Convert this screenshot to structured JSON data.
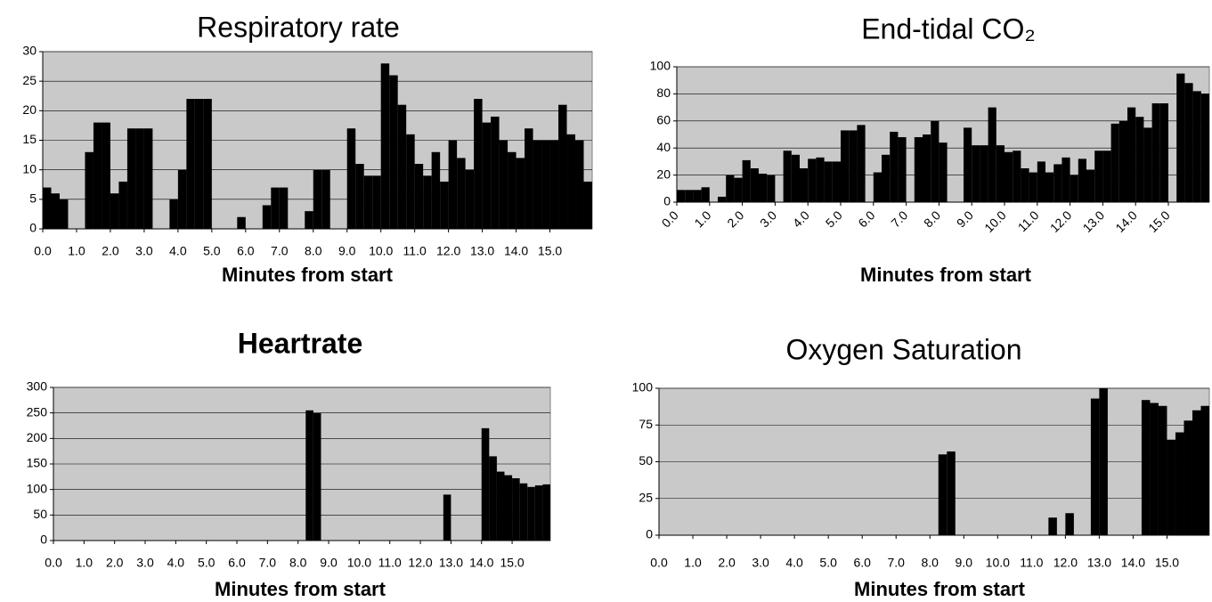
{
  "chart_data": [
    {
      "type": "bar",
      "title": "Respiratory rate",
      "x_label": "Minutes from start",
      "color": "#000000",
      "grid": true,
      "x": [
        0,
        0.25,
        0.5,
        0.75,
        1,
        1.25,
        1.5,
        1.75,
        2,
        2.25,
        2.5,
        2.75,
        3,
        3.25,
        3.5,
        3.75,
        4,
        4.25,
        4.5,
        4.75,
        5,
        5.25,
        5.5,
        5.75,
        6,
        6.25,
        6.5,
        6.75,
        7,
        7.25,
        7.5,
        7.75,
        8,
        8.25,
        8.5,
        8.75,
        9,
        9.25,
        9.5,
        9.75,
        10,
        10.25,
        10.5,
        10.75,
        11,
        11.25,
        11.5,
        11.75,
        12,
        12.25,
        12.5,
        12.75,
        13,
        13.25,
        13.5,
        13.75,
        14,
        14.25,
        14.5,
        14.75,
        15,
        15.25,
        15.5,
        15.75,
        16
      ],
      "values": [
        7,
        6,
        5,
        0,
        0,
        13,
        18,
        18,
        6,
        8,
        17,
        17,
        17,
        0,
        0,
        5,
        10,
        22,
        22,
        22,
        0,
        0,
        0,
        2,
        0,
        0,
        4,
        7,
        7,
        0,
        0,
        3,
        10,
        10,
        0,
        0,
        17,
        11,
        9,
        9,
        28,
        26,
        21,
        16,
        11,
        9,
        13,
        8,
        15,
        12,
        10,
        22,
        18,
        19,
        15,
        13,
        12,
        17,
        15,
        15,
        15,
        21,
        16,
        15,
        8
      ],
      "xlim": [
        0,
        16.25
      ],
      "xticks": [
        {
          "value": 0,
          "label": "0.0"
        },
        {
          "value": 1,
          "label": "1.0"
        },
        {
          "value": 2,
          "label": "2.0"
        },
        {
          "value": 3,
          "label": "3.0"
        },
        {
          "value": 4,
          "label": "4.0"
        },
        {
          "value": 5,
          "label": "5.0"
        },
        {
          "value": 6,
          "label": "6.0"
        },
        {
          "value": 7,
          "label": "7.0"
        },
        {
          "value": 8,
          "label": "8.0"
        },
        {
          "value": 9,
          "label": "9.0"
        },
        {
          "value": 10,
          "label": "10.0"
        },
        {
          "value": 11,
          "label": "11.0"
        },
        {
          "value": 12,
          "label": "12.0"
        },
        {
          "value": 13,
          "label": "13.0"
        },
        {
          "value": 14,
          "label": "14.0"
        },
        {
          "value": 15,
          "label": "15.0"
        }
      ],
      "ylim": [
        0,
        30
      ],
      "yticks": [
        0,
        5,
        10,
        15,
        20,
        25,
        30
      ]
    },
    {
      "type": "bar",
      "title": "End-tidal CO₂",
      "x_label": "Minutes from start",
      "color": "#000000",
      "grid": true,
      "x": [
        0,
        0.25,
        0.5,
        0.75,
        1,
        1.25,
        1.5,
        1.75,
        2,
        2.25,
        2.5,
        2.75,
        3,
        3.25,
        3.5,
        3.75,
        4,
        4.25,
        4.5,
        4.75,
        5,
        5.25,
        5.5,
        5.75,
        6,
        6.25,
        6.5,
        6.75,
        7,
        7.25,
        7.5,
        7.75,
        8,
        8.25,
        8.5,
        8.75,
        9,
        9.25,
        9.5,
        9.75,
        10,
        10.25,
        10.5,
        10.75,
        11,
        11.25,
        11.5,
        11.75,
        12,
        12.25,
        12.5,
        12.75,
        13,
        13.25,
        13.5,
        13.75,
        14,
        14.25,
        14.5,
        14.75,
        15,
        15.25,
        15.5,
        15.75,
        16
      ],
      "values": [
        9,
        9,
        9,
        11,
        0,
        4,
        20,
        18,
        31,
        25,
        21,
        20,
        0,
        38,
        35,
        25,
        32,
        33,
        30,
        30,
        53,
        53,
        57,
        0,
        22,
        35,
        52,
        48,
        0,
        48,
        50,
        60,
        44,
        0,
        0,
        55,
        42,
        42,
        70,
        42,
        37,
        38,
        25,
        22,
        30,
        22,
        28,
        33,
        20,
        32,
        24,
        38,
        38,
        58,
        60,
        70,
        63,
        55,
        73,
        73,
        0,
        95,
        88,
        82,
        80
      ],
      "xlim": [
        0,
        16.25
      ],
      "xticks": [
        {
          "value": 0,
          "label": "0.0"
        },
        {
          "value": 1,
          "label": "1.0"
        },
        {
          "value": 2,
          "label": "2.0"
        },
        {
          "value": 3,
          "label": "3.0"
        },
        {
          "value": 4,
          "label": "4.0"
        },
        {
          "value": 5,
          "label": "5.0"
        },
        {
          "value": 6,
          "label": "6.0"
        },
        {
          "value": 7,
          "label": "7.0"
        },
        {
          "value": 8,
          "label": "8.0"
        },
        {
          "value": 9,
          "label": "9.0"
        },
        {
          "value": 10,
          "label": "10.0"
        },
        {
          "value": 11,
          "label": "11.0"
        },
        {
          "value": 12,
          "label": "12.0"
        },
        {
          "value": 13,
          "label": "13.0"
        },
        {
          "value": 14,
          "label": "14.0"
        },
        {
          "value": 15,
          "label": "15.0"
        }
      ],
      "ylim": [
        0,
        100
      ],
      "yticks": [
        0,
        20,
        40,
        60,
        80,
        100
      ]
    },
    {
      "type": "bar",
      "title": "Heartrate",
      "x_label": "Minutes from start",
      "color": "#000000",
      "grid": true,
      "x": [
        0,
        0.25,
        0.5,
        0.75,
        1,
        1.25,
        1.5,
        1.75,
        2,
        2.25,
        2.5,
        2.75,
        3,
        3.25,
        3.5,
        3.75,
        4,
        4.25,
        4.5,
        4.75,
        5,
        5.25,
        5.5,
        5.75,
        6,
        6.25,
        6.5,
        6.75,
        7,
        7.25,
        7.5,
        7.75,
        8,
        8.25,
        8.5,
        8.75,
        9,
        9.25,
        9.5,
        9.75,
        10,
        10.25,
        10.5,
        10.75,
        11,
        11.25,
        11.5,
        11.75,
        12,
        12.25,
        12.5,
        12.75,
        13,
        13.25,
        13.5,
        13.75,
        14,
        14.25,
        14.5,
        14.75,
        15,
        15.25,
        15.5,
        15.75,
        16
      ],
      "values": [
        0,
        0,
        0,
        0,
        0,
        0,
        0,
        0,
        0,
        0,
        0,
        0,
        0,
        0,
        0,
        0,
        0,
        0,
        0,
        0,
        0,
        0,
        0,
        0,
        0,
        0,
        0,
        0,
        0,
        0,
        0,
        0,
        0,
        255,
        250,
        0,
        0,
        0,
        0,
        0,
        0,
        0,
        0,
        0,
        0,
        0,
        0,
        0,
        0,
        0,
        0,
        90,
        0,
        0,
        0,
        0,
        220,
        165,
        135,
        128,
        122,
        112,
        105,
        108,
        110
      ],
      "xlim": [
        0,
        16.25
      ],
      "xticks": [
        {
          "value": 0,
          "label": "0.0"
        },
        {
          "value": 1,
          "label": "1.0"
        },
        {
          "value": 2,
          "label": "2.0"
        },
        {
          "value": 3,
          "label": "3.0"
        },
        {
          "value": 4,
          "label": "4.0"
        },
        {
          "value": 5,
          "label": "5.0"
        },
        {
          "value": 6,
          "label": "6.0"
        },
        {
          "value": 7,
          "label": "7.0"
        },
        {
          "value": 8,
          "label": "8.0"
        },
        {
          "value": 9,
          "label": "9.0"
        },
        {
          "value": 10,
          "label": "10.0"
        },
        {
          "value": 11,
          "label": "11.0"
        },
        {
          "value": 12,
          "label": "12.0"
        },
        {
          "value": 13,
          "label": "13.0"
        },
        {
          "value": 14,
          "label": "14.0"
        },
        {
          "value": 15,
          "label": "15.0"
        }
      ],
      "ylim": [
        0,
        300
      ],
      "yticks": [
        0,
        50,
        100,
        150,
        200,
        250,
        300
      ]
    },
    {
      "type": "bar",
      "title": "Oxygen Saturation",
      "x_label": "Minutes from start",
      "color": "#000000",
      "grid": true,
      "x": [
        0,
        0.25,
        0.5,
        0.75,
        1,
        1.25,
        1.5,
        1.75,
        2,
        2.25,
        2.5,
        2.75,
        3,
        3.25,
        3.5,
        3.75,
        4,
        4.25,
        4.5,
        4.75,
        5,
        5.25,
        5.5,
        5.75,
        6,
        6.25,
        6.5,
        6.75,
        7,
        7.25,
        7.5,
        7.75,
        8,
        8.25,
        8.5,
        8.75,
        9,
        9.25,
        9.5,
        9.75,
        10,
        10.25,
        10.5,
        10.75,
        11,
        11.25,
        11.5,
        11.75,
        12,
        12.25,
        12.5,
        12.75,
        13,
        13.25,
        13.5,
        13.75,
        14,
        14.25,
        14.5,
        14.75,
        15,
        15.25,
        15.5,
        15.75,
        16
      ],
      "values": [
        0,
        0,
        0,
        0,
        0,
        0,
        0,
        0,
        0,
        0,
        0,
        0,
        0,
        0,
        0,
        0,
        0,
        0,
        0,
        0,
        0,
        0,
        0,
        0,
        0,
        0,
        0,
        0,
        0,
        0,
        0,
        0,
        0,
        55,
        57,
        0,
        0,
        0,
        0,
        0,
        0,
        0,
        0,
        0,
        0,
        0,
        12,
        0,
        15,
        0,
        0,
        93,
        100,
        0,
        0,
        0,
        0,
        92,
        90,
        88,
        65,
        70,
        78,
        85,
        88
      ],
      "xlim": [
        0,
        16.25
      ],
      "xticks": [
        {
          "value": 0,
          "label": "0.0"
        },
        {
          "value": 1,
          "label": "1.0"
        },
        {
          "value": 2,
          "label": "2.0"
        },
        {
          "value": 3,
          "label": "3.0"
        },
        {
          "value": 4,
          "label": "4.0"
        },
        {
          "value": 5,
          "label": "5.0"
        },
        {
          "value": 6,
          "label": "6.0"
        },
        {
          "value": 7,
          "label": "7.0"
        },
        {
          "value": 8,
          "label": "8.0"
        },
        {
          "value": 9,
          "label": "9.0"
        },
        {
          "value": 10,
          "label": "10.0"
        },
        {
          "value": 11,
          "label": "11.0"
        },
        {
          "value": 12,
          "label": "12.0"
        },
        {
          "value": 13,
          "label": "13.0"
        },
        {
          "value": 14,
          "label": "14.0"
        },
        {
          "value": 15,
          "label": "15.0"
        }
      ],
      "ylim": [
        0,
        100
      ],
      "yticks": [
        0,
        25,
        50,
        75,
        100
      ]
    }
  ]
}
